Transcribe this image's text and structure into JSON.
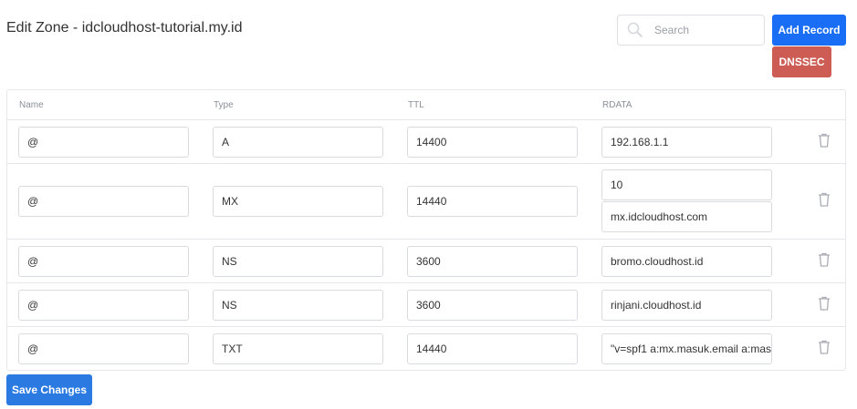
{
  "title": "Edit Zone - idcloudhost-tutorial.my.id",
  "search": {
    "placeholder": "Search",
    "icon": "search-icon"
  },
  "buttons": {
    "add_record": "Add Record",
    "dnssec": "DNSSEC",
    "save": "Save Changes"
  },
  "colors": {
    "add": "#1a6ef5",
    "dnssec": "#cd5c55",
    "save": "#2a7ae2"
  },
  "columns": [
    "Name",
    "Type",
    "TTL",
    "RDATA"
  ],
  "records": [
    {
      "name": "@",
      "type": "A",
      "ttl": "14400",
      "rdata": [
        "192.168.1.1"
      ]
    },
    {
      "name": "@",
      "type": "MX",
      "ttl": "14440",
      "rdata": [
        "10",
        "mx.idcloudhost.com"
      ]
    },
    {
      "name": "@",
      "type": "NS",
      "ttl": "3600",
      "rdata": [
        "bromo.cloudhost.id"
      ]
    },
    {
      "name": "@",
      "type": "NS",
      "ttl": "3600",
      "rdata": [
        "rinjani.cloudhost.id"
      ]
    },
    {
      "name": "@",
      "type": "TXT",
      "ttl": "14440",
      "rdata": [
        "\"v=spf1 a:mx.masuk.email a:mas"
      ]
    }
  ]
}
